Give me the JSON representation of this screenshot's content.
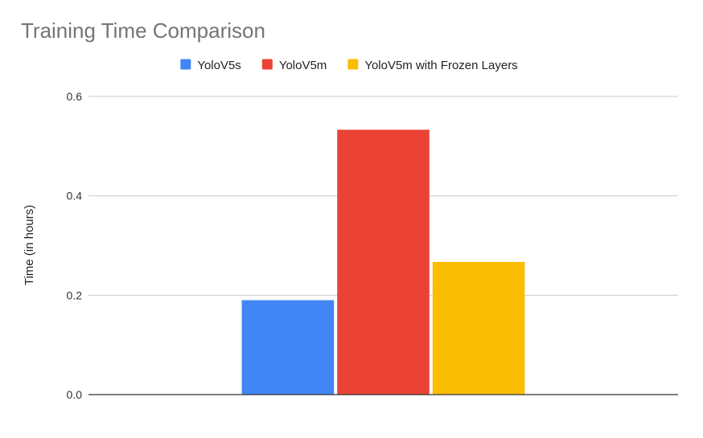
{
  "chart_data": {
    "type": "bar",
    "title": "Training Time Comparison",
    "xlabel": "",
    "ylabel": "Time (in hours)",
    "categories": [
      ""
    ],
    "series": [
      {
        "name": "YoloV5s",
        "color": "#4285f4",
        "values": [
          0.19
        ]
      },
      {
        "name": "YoloV5m",
        "color": "#ea4335",
        "values": [
          0.533
        ]
      },
      {
        "name": "YoloV5m with Frozen Layers",
        "color": "#fbbc04",
        "values": [
          0.267
        ]
      }
    ],
    "ylim": [
      0,
      0.6
    ],
    "yticks": [
      "0.0",
      "0.2",
      "0.4",
      "0.6"
    ],
    "ytick_values": [
      0,
      0.2,
      0.4,
      0.6
    ],
    "grid": true,
    "legend_position": "top-center"
  }
}
